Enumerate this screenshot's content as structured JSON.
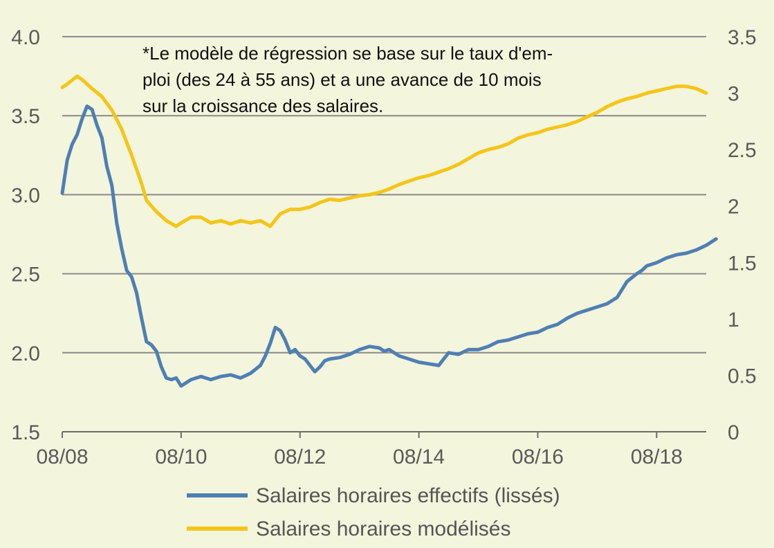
{
  "chart_data": {
    "type": "line",
    "note_lines": [
      "*Le modèle de régression se base sur le taux d'em-",
      "ploi (des 24 à 55 ans) et a une avance de 10 mois",
      "sur la croissance des salaires."
    ],
    "x_ticks": [
      "08/08",
      "08/10",
      "08/12",
      "08/14",
      "08/16",
      "08/18"
    ],
    "x_tick_positions": [
      2008.583,
      2010.583,
      2012.583,
      2014.583,
      2016.583,
      2018.583
    ],
    "xlim": [
      2008.583,
      2019.417
    ],
    "y_left": {
      "lim": [
        1.5,
        4.0
      ],
      "ticks": [
        "1.5",
        "2.0",
        "2.5",
        "3.0",
        "3.5",
        "4.0"
      ],
      "tick_values": [
        1.5,
        2.0,
        2.5,
        3.0,
        3.5,
        4.0
      ]
    },
    "y_right": {
      "lim": [
        0,
        3.5
      ],
      "ticks": [
        "0",
        "0.5",
        "1",
        "1.5",
        "2",
        "2.5",
        "3",
        "3.5"
      ],
      "tick_values": [
        0,
        0.5,
        1,
        1.5,
        2,
        2.5,
        3,
        3.5
      ]
    },
    "grid": true,
    "legend_position": "bottom-center",
    "series": [
      {
        "name": "Salaires horaires effectifs (lissés)",
        "axis": "left",
        "color": "#4f7fb3",
        "x": [
          2008.583,
          2008.667,
          2008.75,
          2008.833,
          2008.917,
          2009.0,
          2009.083,
          2009.167,
          2009.25,
          2009.333,
          2009.417,
          2009.5,
          2009.583,
          2009.667,
          2009.75,
          2009.833,
          2009.917,
          2010.0,
          2010.083,
          2010.167,
          2010.25,
          2010.333,
          2010.417,
          2010.5,
          2010.583,
          2010.75,
          2010.917,
          2011.083,
          2011.25,
          2011.417,
          2011.583,
          2011.75,
          2011.917,
          2012.0,
          2012.083,
          2012.167,
          2012.25,
          2012.333,
          2012.417,
          2012.5,
          2012.583,
          2012.667,
          2012.75,
          2012.833,
          2012.917,
          2013.0,
          2013.083,
          2013.25,
          2013.417,
          2013.583,
          2013.75,
          2013.917,
          2014.0,
          2014.083,
          2014.25,
          2014.417,
          2014.583,
          2014.75,
          2014.917,
          2015.0,
          2015.083,
          2015.25,
          2015.417,
          2015.583,
          2015.75,
          2015.917,
          2016.083,
          2016.25,
          2016.417,
          2016.583,
          2016.75,
          2016.917,
          2017.083,
          2017.25,
          2017.417,
          2017.583,
          2017.75,
          2017.917,
          2018.083,
          2018.25,
          2018.333,
          2018.417,
          2018.583,
          2018.75,
          2018.917,
          2019.083,
          2019.25,
          2019.417,
          2019.583
        ],
        "values": [
          3.01,
          3.22,
          3.32,
          3.38,
          3.48,
          3.56,
          3.54,
          3.44,
          3.36,
          3.18,
          3.06,
          2.82,
          2.66,
          2.52,
          2.48,
          2.38,
          2.22,
          2.07,
          2.05,
          2.01,
          1.91,
          1.84,
          1.83,
          1.84,
          1.79,
          1.83,
          1.85,
          1.83,
          1.85,
          1.86,
          1.84,
          1.87,
          1.92,
          1.98,
          2.06,
          2.16,
          2.14,
          2.08,
          2.0,
          2.02,
          1.98,
          1.96,
          1.92,
          1.88,
          1.91,
          1.95,
          1.96,
          1.97,
          1.99,
          2.02,
          2.04,
          2.03,
          2.01,
          2.02,
          1.98,
          1.96,
          1.94,
          1.93,
          1.92,
          1.96,
          2.0,
          1.99,
          2.02,
          2.02,
          2.04,
          2.07,
          2.08,
          2.1,
          2.12,
          2.13,
          2.16,
          2.18,
          2.22,
          2.25,
          2.27,
          2.29,
          2.31,
          2.35,
          2.45,
          2.5,
          2.52,
          2.55,
          2.57,
          2.6,
          2.62,
          2.63,
          2.65,
          2.68,
          2.72
        ]
      },
      {
        "name": "Salaires horaires modélisés",
        "axis": "right",
        "color": "#f5c518",
        "x": [
          2008.583,
          2008.667,
          2008.833,
          2008.917,
          2009.083,
          2009.25,
          2009.417,
          2009.583,
          2009.75,
          2009.917,
          2010.0,
          2010.167,
          2010.333,
          2010.5,
          2010.583,
          2010.75,
          2010.917,
          2011.083,
          2011.25,
          2011.417,
          2011.583,
          2011.75,
          2011.917,
          2012.083,
          2012.25,
          2012.417,
          2012.583,
          2012.75,
          2012.917,
          2013.083,
          2013.25,
          2013.417,
          2013.583,
          2013.75,
          2013.917,
          2014.083,
          2014.25,
          2014.417,
          2014.583,
          2014.75,
          2014.917,
          2015.083,
          2015.25,
          2015.417,
          2015.583,
          2015.75,
          2015.917,
          2016.083,
          2016.25,
          2016.417,
          2016.583,
          2016.75,
          2016.917,
          2017.083,
          2017.25,
          2017.417,
          2017.583,
          2017.75,
          2017.917,
          2018.083,
          2018.25,
          2018.417,
          2018.583,
          2018.75,
          2018.917,
          2019.083,
          2019.25,
          2019.417
        ],
        "values": [
          3.05,
          3.08,
          3.15,
          3.12,
          3.04,
          2.97,
          2.85,
          2.68,
          2.45,
          2.2,
          2.05,
          1.95,
          1.87,
          1.82,
          1.85,
          1.9,
          1.9,
          1.85,
          1.87,
          1.84,
          1.87,
          1.85,
          1.87,
          1.82,
          1.93,
          1.97,
          1.97,
          1.99,
          2.03,
          2.06,
          2.05,
          2.07,
          2.09,
          2.1,
          2.12,
          2.15,
          2.19,
          2.22,
          2.25,
          2.27,
          2.3,
          2.33,
          2.37,
          2.42,
          2.47,
          2.5,
          2.52,
          2.55,
          2.6,
          2.63,
          2.65,
          2.68,
          2.7,
          2.72,
          2.75,
          2.79,
          2.83,
          2.88,
          2.92,
          2.95,
          2.97,
          3.0,
          3.02,
          3.04,
          3.06,
          3.06,
          3.04,
          3.0
        ]
      }
    ]
  }
}
